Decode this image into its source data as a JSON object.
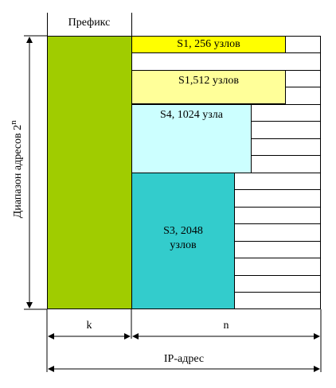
{
  "labels": {
    "prefix": "Префикс",
    "range_base": "Диапазон адресов 2",
    "range_exp": "n",
    "k": "k",
    "n": "n",
    "ip": "IP-адрес"
  },
  "blocks": {
    "s1_256": "S1, 256 узлов",
    "s1_512": "S1,512 узлов",
    "s4_1024": "S4, 1024 узла",
    "s3_2048_line1": "S3, 2048",
    "s3_2048_line2": "узлов"
  },
  "colors": {
    "prefix_fill": "#a0cc00",
    "s1_256_fill": "#ffff00",
    "s1_512_fill": "#ffff99",
    "s4_fill": "#ccffff",
    "s3_fill": "#33cccc"
  }
}
